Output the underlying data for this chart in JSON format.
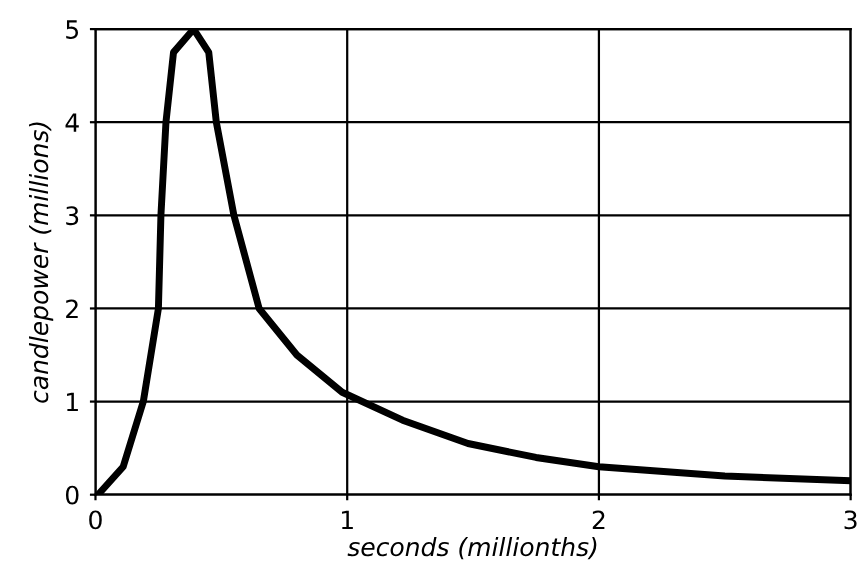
{
  "chart_data": {
    "type": "line",
    "xlabel": "seconds (millionths)",
    "ylabel": "candlepower (millions)",
    "x": [
      0.01,
      0.11,
      0.19,
      0.25,
      0.26,
      0.28,
      0.31,
      0.39,
      0.45,
      0.48,
      0.55,
      0.65,
      0.8,
      0.98,
      1.22,
      1.48,
      1.75,
      2.0,
      2.5,
      3.0
    ],
    "series": [
      {
        "color": "#000000",
        "values": [
          0,
          0.3,
          1.0,
          2.0,
          3.0,
          4.0,
          4.75,
          5.0,
          4.75,
          4.0,
          3.0,
          2.0,
          1.5,
          1.1,
          0.8,
          0.55,
          0.4,
          0.3,
          0.2,
          0.15
        ]
      }
    ],
    "xlim": [
      0,
      3
    ],
    "xticks": [
      0,
      1,
      2,
      3
    ],
    "ylim": [
      0,
      5
    ],
    "yticks": [
      0,
      1,
      2,
      3,
      4,
      5
    ],
    "grid": true
  }
}
